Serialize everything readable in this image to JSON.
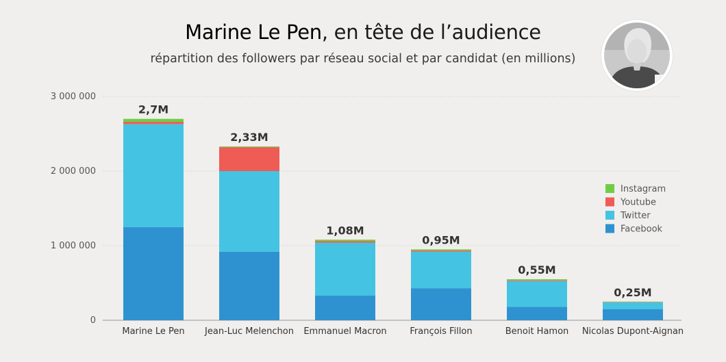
{
  "header": {
    "title_bold": "Marine Le Pen",
    "title_rest": ", en tête de l’audience",
    "subtitle": "répartition des followers par réseau social et par candidat (en millions)"
  },
  "avatar_icon": "portrait-photo-icon",
  "chart_data": {
    "type": "bar",
    "stacked": true,
    "categories": [
      "Marine Le Pen",
      "Jean-Luc Melenchon",
      "Emmanuel Macron",
      "François Fillon",
      "Benoit Hamon",
      "Nicolas Dupont-Aignan"
    ],
    "series": [
      {
        "name": "Facebook",
        "color": "#2f92d0",
        "values": [
          1250000,
          920000,
          330000,
          430000,
          180000,
          150000
        ]
      },
      {
        "name": "Twitter",
        "color": "#45c3e2",
        "values": [
          1380000,
          1080000,
          710000,
          490000,
          345000,
          90000
        ]
      },
      {
        "name": "Youtube",
        "color": "#ef5b55",
        "values": [
          30000,
          320000,
          20000,
          15000,
          10000,
          5000
        ]
      },
      {
        "name": "Instagram",
        "color": "#6fcd45",
        "values": [
          40000,
          10000,
          20000,
          15000,
          15000,
          5000
        ]
      }
    ],
    "totals": [
      "2,7M",
      "2,33M",
      "1,08M",
      "0,95M",
      "0,55M",
      "0,25M"
    ],
    "yticks": [
      {
        "value": 0,
        "label": "0"
      },
      {
        "value": 1000000,
        "label": "1 000 000"
      },
      {
        "value": 2000000,
        "label": "2 000 000"
      },
      {
        "value": 3000000,
        "label": "3 000 000"
      }
    ],
    "ylim": [
      0,
      3000000
    ],
    "grid": true,
    "legend_position": "right",
    "legend_order": [
      "Instagram",
      "Youtube",
      "Twitter",
      "Facebook"
    ]
  }
}
